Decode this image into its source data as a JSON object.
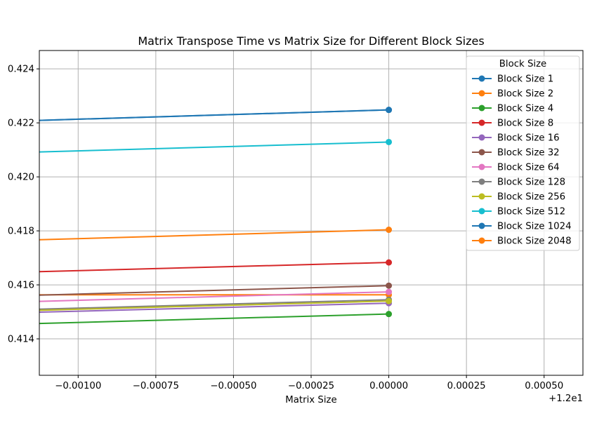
{
  "chart_data": {
    "type": "line",
    "title": "Matrix Transpose Time vs Matrix Size for Different Block Sizes",
    "xlabel": "Matrix Size",
    "ylabel": "",
    "x_offset_label": "+1.2e1",
    "xlim": [
      -0.001125,
      0.000625
    ],
    "ylim": [
      0.41265,
      0.42468
    ],
    "x_ticks": [
      -0.001,
      -0.00075,
      -0.0005,
      -0.00025,
      0.0,
      0.00025,
      0.0005
    ],
    "x_tick_labels": [
      "−0.00100",
      "−0.00075",
      "−0.00050",
      "−0.00025",
      "0.00000",
      "0.00025",
      "0.00050"
    ],
    "y_ticks": [
      0.414,
      0.416,
      0.418,
      0.42,
      0.422,
      0.424
    ],
    "y_tick_labels": [
      "0.414",
      "0.416",
      "0.418",
      "0.420",
      "0.422",
      "0.424"
    ],
    "grid": true,
    "legend": {
      "title": "Block Size",
      "placement": "top-right"
    },
    "x_line_start": -0.00125,
    "series": [
      {
        "name": "Block Size 1",
        "color": "#1f77b4",
        "x": [
          -0.00125,
          0.0
        ],
        "y": [
          0.42205,
          0.42248
        ]
      },
      {
        "name": "Block Size 2",
        "color": "#ff7f0e",
        "x": [
          -0.00125,
          0.0
        ],
        "y": [
          0.41563,
          0.41563
        ]
      },
      {
        "name": "Block Size 4",
        "color": "#2ca02c",
        "x": [
          -0.00125,
          0.0
        ],
        "y": [
          0.41453,
          0.41492
        ]
      },
      {
        "name": "Block Size 8",
        "color": "#d62728",
        "x": [
          -0.00125,
          0.0
        ],
        "y": [
          0.41645,
          0.41683
        ]
      },
      {
        "name": "Block Size 16",
        "color": "#9467bd",
        "x": [
          -0.00125,
          0.0
        ],
        "y": [
          0.41495,
          0.41532
        ]
      },
      {
        "name": "Block Size 32",
        "color": "#8c564b",
        "x": [
          -0.00125,
          0.0
        ],
        "y": [
          0.41558,
          0.41597
        ]
      },
      {
        "name": "Block Size 64",
        "color": "#e377c2",
        "x": [
          -0.00125,
          0.0
        ],
        "y": [
          0.41535,
          0.41574
        ]
      },
      {
        "name": "Block Size 128",
        "color": "#7f7f7f",
        "x": [
          -0.00125,
          0.0
        ],
        "y": [
          0.41506,
          0.41545
        ]
      },
      {
        "name": "Block Size 256",
        "color": "#bcbd22",
        "x": [
          -0.00125,
          0.0
        ],
        "y": [
          0.41502,
          0.4154
        ]
      },
      {
        "name": "Block Size 512",
        "color": "#17becf",
        "x": [
          -0.00125,
          0.0
        ],
        "y": [
          0.42088,
          0.42129
        ]
      },
      {
        "name": "Block Size 1024",
        "color": "#1f77b4",
        "x": [
          -0.00125,
          0.0
        ],
        "y": [
          0.42205,
          0.42248
        ]
      },
      {
        "name": "Block Size 2048",
        "color": "#ff7f0e",
        "x": [
          -0.00125,
          0.0
        ],
        "y": [
          0.41763,
          0.41804
        ]
      }
    ]
  }
}
